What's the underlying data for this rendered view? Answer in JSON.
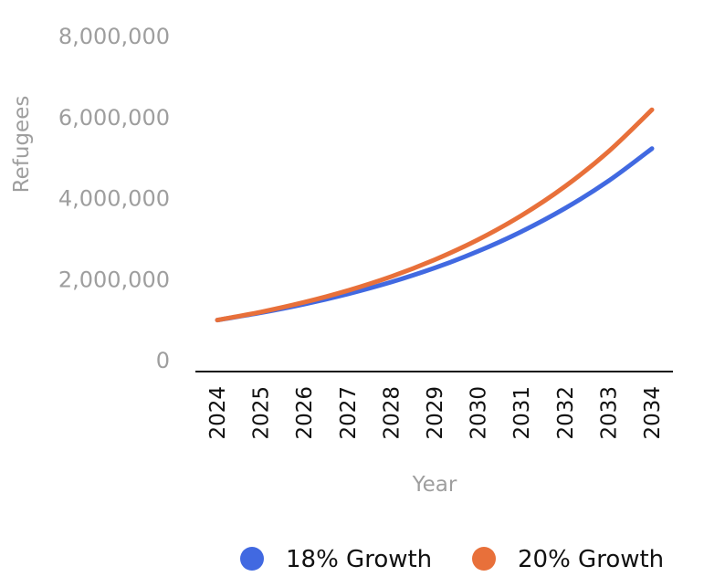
{
  "chart_data": {
    "type": "line",
    "xlabel": "Year",
    "ylabel": "Refugees",
    "x": [
      "2024",
      "2025",
      "2026",
      "2027",
      "2028",
      "2029",
      "2030",
      "2031",
      "2032",
      "2033",
      "2034"
    ],
    "ylim": [
      0,
      8000000
    ],
    "yticks": [
      0,
      2000000,
      4000000,
      6000000,
      8000000
    ],
    "ytick_labels": [
      "0",
      "2,000,000",
      "4,000,000",
      "6,000,000",
      "8,000,000"
    ],
    "grid": false,
    "legend_position": "bottom-right",
    "series": [
      {
        "name": "18% Growth",
        "color": "#4169e1",
        "values": [
          1000000,
          1180000,
          1392400,
          1643032,
          1938778,
          2287758,
          2699554,
          3185474,
          3758859,
          4435454,
          5233836
        ]
      },
      {
        "name": "20% Growth",
        "color": "#e8703a",
        "values": [
          1000000,
          1200000,
          1440000,
          1728000,
          2073600,
          2488320,
          2985984,
          3583181,
          4299817,
          5159780,
          6191736
        ]
      }
    ]
  }
}
